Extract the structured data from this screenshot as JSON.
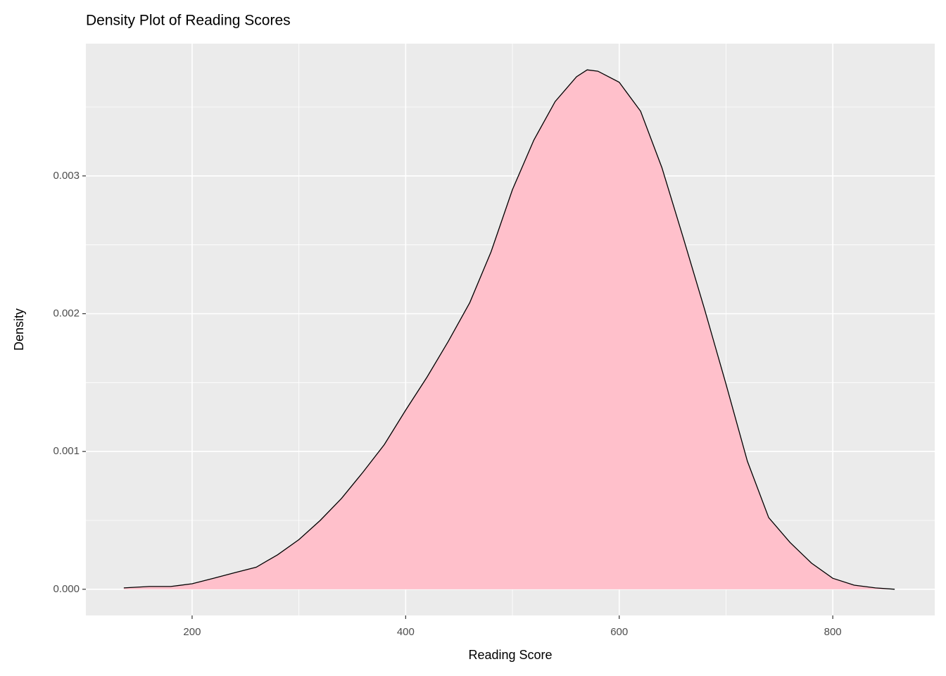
{
  "chart_data": {
    "type": "density",
    "title": "Density Plot of Reading Scores",
    "xlabel": "Reading Score",
    "ylabel": "Density",
    "x": [
      136,
      160,
      180,
      200,
      220,
      240,
      260,
      280,
      300,
      320,
      340,
      360,
      380,
      400,
      420,
      440,
      460,
      480,
      500,
      520,
      540,
      560,
      570,
      580,
      600,
      620,
      640,
      660,
      680,
      700,
      720,
      740,
      760,
      780,
      800,
      820,
      840,
      858
    ],
    "values": [
      1e-05,
      2e-05,
      2e-05,
      4e-05,
      8e-05,
      0.00012,
      0.00016,
      0.00025,
      0.00036,
      0.0005,
      0.00066,
      0.00085,
      0.00105,
      0.0013,
      0.00154,
      0.0018,
      0.00208,
      0.00245,
      0.0029,
      0.00326,
      0.00354,
      0.00372,
      0.00377,
      0.00376,
      0.00368,
      0.00347,
      0.00306,
      0.00255,
      0.00203,
      0.00149,
      0.00093,
      0.00052,
      0.00034,
      0.00019,
      8e-05,
      3e-05,
      1e-05,
      0.0
    ],
    "fill": "#ffc0cb",
    "line_color": "#000000",
    "xlim": [
      100.5,
      895.5
    ],
    "ylim": [
      -0.00019,
      0.00396
    ],
    "xticks": [
      200,
      400,
      600,
      800
    ],
    "yticks": [
      {
        "value": 0,
        "label": "0.000"
      },
      {
        "value": 0.001,
        "label": "0.001"
      },
      {
        "value": 0.002,
        "label": "0.002"
      },
      {
        "value": 0.003,
        "label": "0.003"
      }
    ],
    "xminor": [
      300,
      500,
      700
    ],
    "yminor": [
      0.0005,
      0.0015,
      0.0025,
      0.0035
    ],
    "grid": true
  }
}
